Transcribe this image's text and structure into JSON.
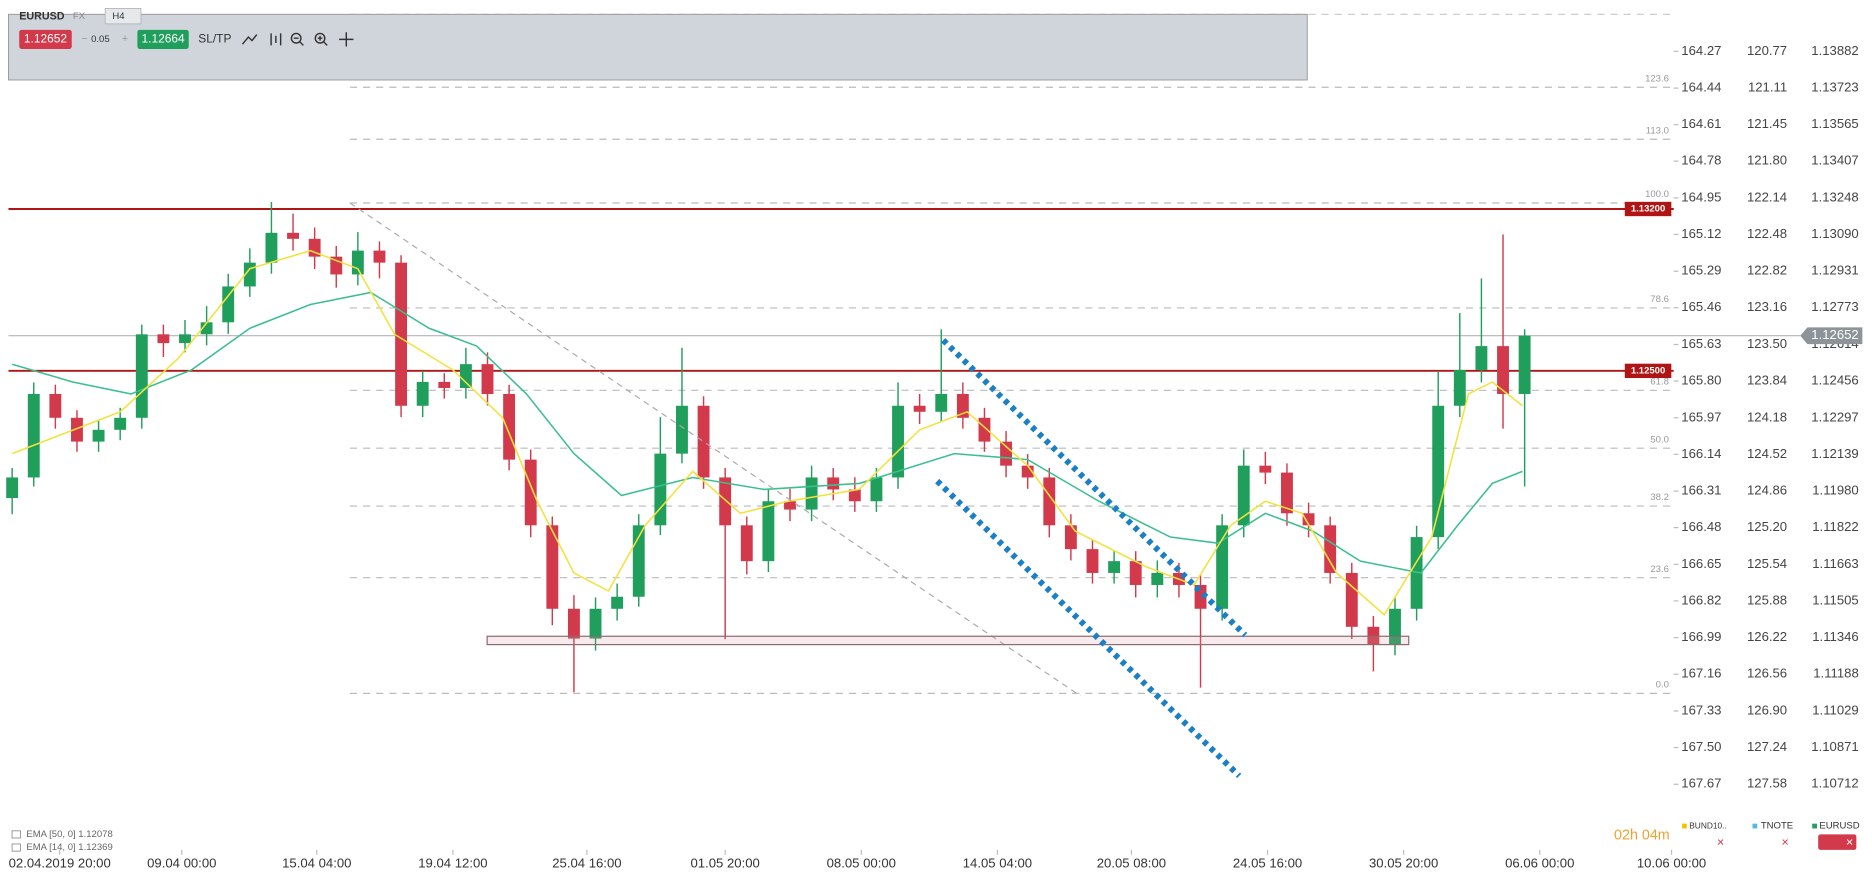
{
  "header": {
    "symbol": "EURUSD",
    "market": "FX",
    "timeframe": "H4",
    "spread": "0.05",
    "ask": "1.12664",
    "sltp": "SL/TP"
  },
  "chart_data": {
    "type": "candlestick",
    "xlim": [
      -0.17,
      76.9
    ],
    "ylim": [
      1.10428,
      1.14042
    ],
    "up_color": "#1f9e5c",
    "down_color": "#d23a4b",
    "yticks": [
      1.13882,
      1.13723,
      1.13565,
      1.13407,
      1.13248,
      {
        "value": 1.1309,
        "label": "1.13090"
      },
      1.12931,
      1.12773,
      1.12614,
      1.12456,
      1.12297,
      1.12139,
      {
        "value": 1.1198,
        "label": "1.11980"
      },
      1.11822,
      1.11663,
      1.11505,
      1.11346,
      1.11188,
      1.11029,
      1.10871,
      1.10712
    ],
    "other_axes": [
      [
        "164.27",
        "164.44",
        "164.61",
        "164.78",
        "164.95",
        "165.12",
        "165.29",
        "165.46",
        "165.63",
        "165.80",
        "165.97",
        "166.14",
        "166.31",
        "166.48",
        "166.65",
        "166.82",
        "166.99",
        "167.16",
        "167.33",
        "167.50",
        "167.67"
      ],
      [
        "120.77",
        "121.11",
        "121.45",
        "121.80",
        "122.14",
        "122.48",
        "122.82",
        "123.16",
        "123.50",
        "123.84",
        "124.18",
        "124.52",
        "124.86",
        "125.20",
        "125.54",
        "125.88",
        "126.22",
        "126.56",
        "126.90",
        "127.24",
        "127.58"
      ]
    ],
    "xticks": [
      {
        "value": 2.2,
        "label": "02.04.2019 20:00"
      },
      {
        "value": 7.85,
        "label": "09.04 00:00"
      },
      {
        "value": 14.1,
        "label": "15.04 04:00"
      },
      {
        "value": 20.4,
        "label": "19.04 12:00"
      },
      {
        "value": 26.6,
        "label": "25.04 16:00"
      },
      {
        "value": 33,
        "label": "01.05 20:00"
      },
      {
        "value": 39.3,
        "label": "08.05 00:00"
      },
      {
        "value": 45.6,
        "label": "14.05 04:00"
      },
      {
        "value": 51.8,
        "label": "20.05 08:00"
      },
      {
        "value": 58.1,
        "label": "24.05 16:00"
      },
      {
        "value": 64.4,
        "label": "30.05 20:00"
      },
      {
        "value": 70.7,
        "label": "06.06 00:00"
      },
      {
        "value": 76.8,
        "label": "10.06 00:00"
      }
    ],
    "open": [
      1.1195,
      1.12039,
      1.124,
      1.12297,
      1.12194,
      1.12245,
      1.12297,
      1.12658,
      1.1262,
      1.12658,
      1.1271,
      1.12865,
      1.12968,
      1.13097,
      1.13071,
      1.12994,
      1.12917,
      1.1302,
      1.12968,
      1.12349,
      1.12452,
      1.12426,
      1.12529,
      1.124,
      1.12116,
      1.11832,
      1.11471,
      1.11342,
      1.11471,
      1.11523,
      1.11832,
      1.12142,
      1.12349,
      1.12039,
      1.11832,
      1.11677,
      1.11936,
      1.119,
      1.12039,
      1.11987,
      1.11936,
      1.12039,
      1.12349,
      1.12323,
      1.124,
      1.12297,
      1.12194,
      1.1209,
      1.12039,
      1.11832,
      1.11729,
      1.11626,
      1.11677,
      1.11574,
      1.11626,
      1.11574,
      1.11471,
      1.11832,
      1.1209,
      1.1206,
      1.11884,
      1.11832,
      1.11626,
      1.11393,
      1.11316,
      1.11471,
      1.11781,
      1.12349,
      1.12504,
      1.12607,
      1.124
    ],
    "high": [
      1.1208,
      1.1245,
      1.1244,
      1.1233,
      1.1229,
      1.1234,
      1.127,
      1.127,
      1.1272,
      1.1278,
      1.1292,
      1.1303,
      1.1323,
      1.1318,
      1.1312,
      1.1304,
      1.131,
      1.1306,
      1.13,
      1.125,
      1.1249,
      1.126,
      1.1258,
      1.1244,
      1.1216,
      1.1187,
      1.1153,
      1.1152,
      1.1158,
      1.1188,
      1.123,
      1.126,
      1.1239,
      1.1208,
      1.1187,
      1.1199,
      1.1199,
      1.1209,
      1.1208,
      1.1204,
      1.1208,
      1.1245,
      1.124,
      1.1268,
      1.1245,
      1.1234,
      1.1224,
      1.1214,
      1.1208,
      1.1188,
      1.1177,
      1.1172,
      1.1172,
      1.1168,
      1.1167,
      1.1162,
      1.1188,
      1.1216,
      1.1215,
      1.121,
      1.1193,
      1.1187,
      1.1167,
      1.1144,
      1.1152,
      1.1183,
      1.125,
      1.1275,
      1.129,
      1.1309,
      1.1268
    ],
    "low": [
      1.1188,
      1.12,
      1.1225,
      1.1215,
      1.1215,
      1.122,
      1.1225,
      1.1256,
      1.1258,
      1.1261,
      1.1266,
      1.1282,
      1.1292,
      1.1302,
      1.1294,
      1.1286,
      1.1287,
      1.129,
      1.123,
      1.123,
      1.1238,
      1.1238,
      1.1235,
      1.1207,
      1.1178,
      1.114,
      1.1111,
      1.1129,
      1.1142,
      1.1148,
      1.1179,
      1.121,
      1.1199,
      1.1134,
      1.1162,
      1.1163,
      1.1185,
      1.1185,
      1.1194,
      1.1189,
      1.1189,
      1.1199,
      1.1227,
      1.1228,
      1.1225,
      1.1215,
      1.1204,
      1.1199,
      1.1178,
      1.1168,
      1.1158,
      1.1158,
      1.1152,
      1.1152,
      1.1152,
      1.1113,
      1.1142,
      1.1178,
      1.1201,
      1.1183,
      1.1178,
      1.1158,
      1.1134,
      1.112,
      1.1127,
      1.1142,
      1.1173,
      1.123,
      1.1245,
      1.1225,
      1.12
    ],
    "close": [
      1.12039,
      1.124,
      1.12297,
      1.12194,
      1.12245,
      1.12297,
      1.12658,
      1.1262,
      1.12658,
      1.1271,
      1.12865,
      1.12968,
      1.13097,
      1.13071,
      1.12994,
      1.12917,
      1.1302,
      1.12968,
      1.12349,
      1.12452,
      1.12426,
      1.12529,
      1.124,
      1.12116,
      1.11832,
      1.11471,
      1.11342,
      1.11471,
      1.11523,
      1.11832,
      1.12142,
      1.12349,
      1.12039,
      1.11832,
      1.11677,
      1.11936,
      1.119,
      1.12039,
      1.11987,
      1.11936,
      1.12039,
      1.12349,
      1.12323,
      1.124,
      1.12297,
      1.12194,
      1.1209,
      1.12039,
      1.11832,
      1.11729,
      1.11626,
      1.11677,
      1.11574,
      1.11626,
      1.11574,
      1.11471,
      1.11832,
      1.1209,
      1.1206,
      1.11884,
      1.11832,
      1.11626,
      1.11393,
      1.11316,
      1.11471,
      1.11781,
      1.12349,
      1.12504,
      1.12607,
      1.124,
      1.12652
    ],
    "series": [
      {
        "name": "EMA [50, 0] 1.12078",
        "color": "#3cbf8f",
        "x": [
          0,
          2.8,
          5.5,
          8.3,
          11,
          13.8,
          16.6,
          19.3,
          21.5,
          23.8,
          26,
          28.2,
          31.5,
          34.8,
          39.2,
          43.6,
          47,
          50.3,
          53.6,
          55.8,
          58,
          60.2,
          62.4,
          65.2,
          66.9,
          68.5,
          69.9
        ],
        "values": [
          1.12529,
          1.12452,
          1.124,
          1.12504,
          1.12684,
          1.12787,
          1.12839,
          1.12684,
          1.12607,
          1.124,
          1.12142,
          1.11961,
          1.12039,
          1.11987,
          1.12013,
          1.12142,
          1.12116,
          1.11936,
          1.11781,
          1.11755,
          1.11884,
          1.11807,
          1.11677,
          1.11626,
          1.11832,
          1.12013,
          1.12065
        ]
      },
      {
        "name": "EMA [14, 0] 1.12369",
        "color": "#f2e23c",
        "x": [
          0,
          5,
          7.7,
          11,
          13.8,
          16,
          17.7,
          20.4,
          22.7,
          24.3,
          26,
          27.6,
          29.3,
          31.5,
          33.7,
          35.9,
          39.2,
          42,
          44.2,
          47,
          49.2,
          52.5,
          54.7,
          56.4,
          58,
          59.7,
          61.3,
          63.5,
          65.7,
          67.4,
          68.5,
          69.9
        ],
        "values": [
          1.12142,
          1.12323,
          1.12555,
          1.12942,
          1.1302,
          1.12942,
          1.12658,
          1.12504,
          1.12297,
          1.11936,
          1.11626,
          1.11548,
          1.11832,
          1.12065,
          1.11884,
          1.11936,
          1.11987,
          1.12245,
          1.12323,
          1.1209,
          1.11807,
          1.11652,
          1.11574,
          1.11832,
          1.11936,
          1.11884,
          1.11626,
          1.11445,
          1.11781,
          1.124,
          1.12452,
          1.12349
        ]
      }
    ],
    "levels": [
      {
        "value": 1.132,
        "label": "1.13200"
      },
      {
        "value": 1.125,
        "label": "1.12500"
      }
    ],
    "level_color": "#b01515",
    "last_price": {
      "value": 1.12652,
      "label": "1.12652"
    },
    "fib": {
      "low": 1.11105,
      "high": 1.13226,
      "levels": [
        {
          "value": 0,
          "label": "0.0"
        },
        23.6,
        38.2,
        {
          "value": 50,
          "label": "50.0"
        },
        61.8,
        78.6,
        {
          "value": 100,
          "label": "100.0"
        },
        {
          "value": 113,
          "label": "113.0"
        },
        123.6
      ]
    }
  },
  "footer": {
    "countdown": "02h 04m",
    "tabs": [
      "BUND10..",
      "TNOTE",
      "EURUSD"
    ]
  }
}
